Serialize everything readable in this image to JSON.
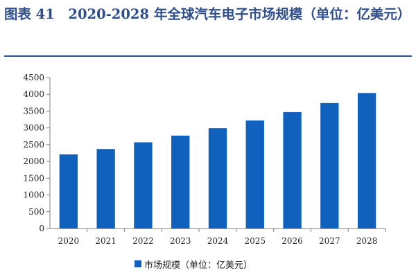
{
  "header": {
    "title": "图表 41　2020-2028 年全球汽车电子市场规模（单位：亿美元）"
  },
  "colors": {
    "bar": "#1061be",
    "accent": "#2f4e8d",
    "axis": "#7f7f7f"
  },
  "chart_data": {
    "type": "bar",
    "categories": [
      "2020",
      "2021",
      "2022",
      "2023",
      "2024",
      "2025",
      "2026",
      "2027",
      "2028"
    ],
    "series": [
      {
        "name": "市场规模（单位：亿美元）",
        "values": [
          2210,
          2370,
          2570,
          2770,
          2990,
          3220,
          3470,
          3740,
          4040
        ]
      }
    ],
    "title": "",
    "xlabel": "",
    "ylabel": "",
    "ylim": [
      0,
      4500
    ],
    "yticks": [
      0,
      500,
      1000,
      1500,
      2000,
      2500,
      3000,
      3500,
      4000,
      4500
    ],
    "grid": false,
    "legend_position": "bottom"
  }
}
